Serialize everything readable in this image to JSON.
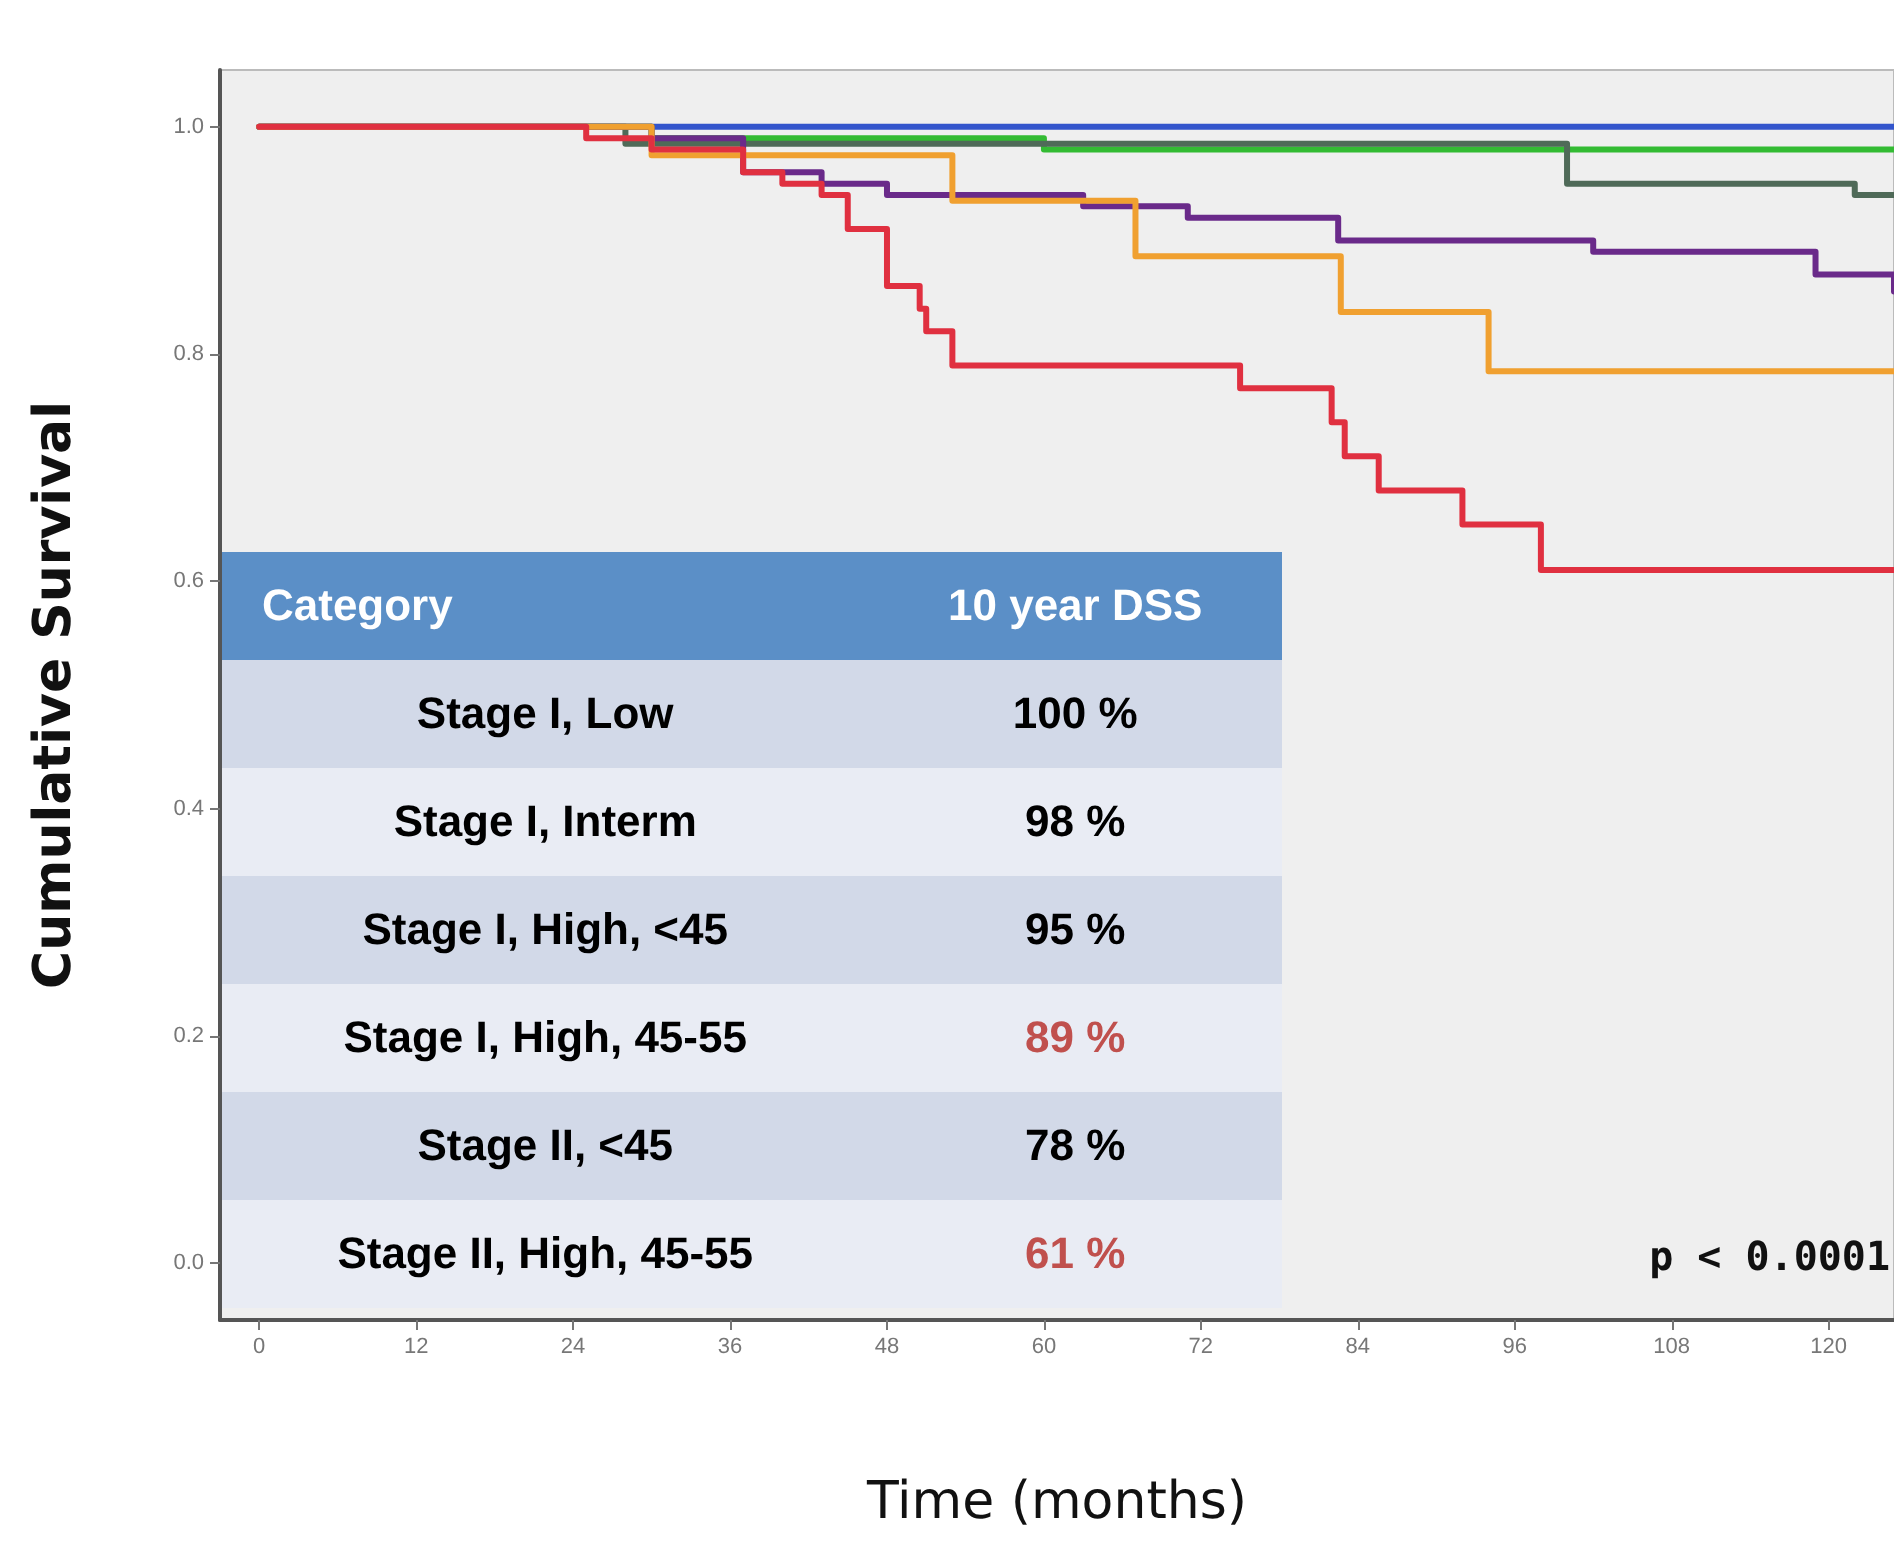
{
  "chart_data": [
    {
      "type": "step",
      "xlabel": "Time (months)",
      "ylabel": "Cumulative Survival",
      "annotations": [
        "p < 0.0001"
      ],
      "line_style": "solid",
      "xlim": [
        -3,
        125
      ],
      "xticks": [
        0,
        12,
        24,
        36,
        48,
        60,
        72,
        84,
        96,
        108,
        120
      ],
      "ylim": [
        -0.05,
        1.05
      ],
      "yticks": [
        {
          "value": 0,
          "label": "0.0"
        },
        0.2,
        0.4,
        0.6,
        0.8,
        {
          "value": 1,
          "label": "1.0"
        }
      ],
      "series": [
        {
          "color": "#3355cc",
          "x": [
            0,
            125
          ],
          "values": [
            1,
            1
          ]
        },
        {
          "color": "#33bb33",
          "x": [
            0,
            30,
            60,
            125
          ],
          "values": [
            1,
            0.99,
            0.98,
            0.98
          ]
        },
        {
          "color": "#4f6a58",
          "x": [
            0,
            28,
            100,
            122,
            125
          ],
          "values": [
            1,
            0.985,
            0.95,
            0.94,
            0.94
          ]
        },
        {
          "color": "#6a2a8a",
          "x": [
            0,
            30,
            37,
            43,
            48,
            63,
            71,
            82.5,
            102,
            119,
            125
          ],
          "values": [
            1,
            0.99,
            0.96,
            0.95,
            0.94,
            0.93,
            0.92,
            0.9,
            0.89,
            0.87,
            0.855
          ]
        },
        {
          "color": "#f0a030",
          "x": [
            0,
            30,
            53,
            67,
            82.7,
            94,
            125
          ],
          "values": [
            1,
            0.975,
            0.935,
            0.886,
            0.837,
            0.785,
            0.785
          ]
        },
        {
          "color": "#e03040",
          "x": [
            0,
            25,
            30,
            37,
            40,
            43,
            45,
            48,
            50.5,
            51,
            53,
            75,
            82,
            83,
            85.6,
            92,
            98,
            125
          ],
          "values": [
            1,
            0.99,
            0.98,
            0.96,
            0.95,
            0.94,
            0.91,
            0.86,
            0.84,
            0.82,
            0.79,
            0.77,
            0.74,
            0.71,
            0.68,
            0.65,
            0.61,
            0.61
          ]
        }
      ]
    },
    {
      "type": "other",
      "annotations": [
        "Category",
        "10 year DSS"
      ],
      "categories": [
        "Stage I, Low",
        "Stage I, Interm",
        "Stage I, High, <45",
        "Stage I, High, 45-55",
        "Stage II, <45",
        "Stage II, High, 45-55"
      ],
      "value_labels": [
        "100 %",
        "98 %",
        "95 %",
        "89 %",
        "78 %",
        "61 %"
      ],
      "colors": [
        "#000000",
        "#000000",
        "#000000",
        "#c0504d",
        "#000000",
        "#c0504d"
      ]
    }
  ]
}
